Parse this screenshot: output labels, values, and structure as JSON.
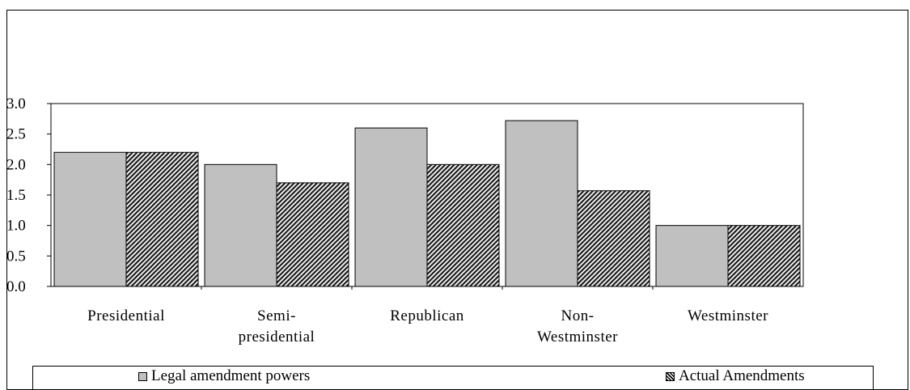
{
  "chart_data": {
    "type": "bar",
    "categories": [
      [
        "Presidential"
      ],
      [
        "Semi-",
        "presidential"
      ],
      [
        "Republican"
      ],
      [
        "Non-",
        "Westminster"
      ],
      [
        "Westminster"
      ]
    ],
    "series": [
      {
        "name": "Legal amendment powers",
        "values": [
          2.2,
          2.0,
          2.6,
          2.72,
          1.0
        ],
        "color": "#c0c0c0",
        "pattern": "solid"
      },
      {
        "name": "Actual Amendments",
        "values": [
          2.2,
          1.7,
          2.0,
          1.57,
          1.0
        ],
        "color": "#555555",
        "pattern": "diagonal-hatch"
      }
    ],
    "yticks": [
      "3.0",
      "2.5",
      "2.0",
      "1.5",
      "1.0",
      "0.5",
      "0.0"
    ],
    "ylim": [
      0,
      3.0
    ],
    "grid": false,
    "legend_position": "bottom"
  }
}
